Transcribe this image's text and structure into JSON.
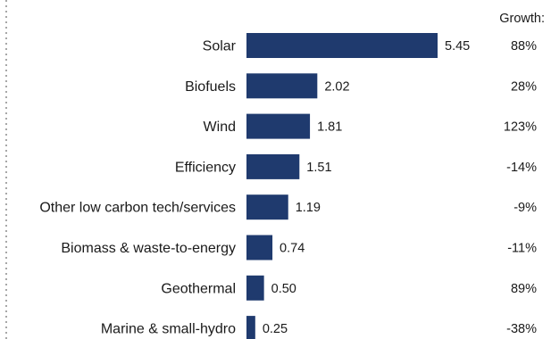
{
  "chart_data": {
    "type": "bar",
    "orientation": "horizontal",
    "categories": [
      "Solar",
      "Biofuels",
      "Wind",
      "Efficiency",
      "Other low carbon tech/services",
      "Biomass & waste-to-energy",
      "Geothermal",
      "Marine & small-hydro"
    ],
    "values": [
      5.45,
      2.02,
      1.81,
      1.51,
      1.19,
      0.74,
      0.5,
      0.25
    ],
    "value_labels": [
      "5.45",
      "2.02",
      "1.81",
      "1.51",
      "1.19",
      "0.74",
      "0.50",
      "0.25"
    ],
    "growth_header": "Growth:",
    "growth": [
      "88%",
      "28%",
      "123%",
      "-14%",
      "-9%",
      "-11%",
      "89%",
      "-38%"
    ],
    "bar_color": "#1f3a6e",
    "axis_line": "dotted",
    "grid": false,
    "xlim": [
      0,
      5.45
    ]
  }
}
